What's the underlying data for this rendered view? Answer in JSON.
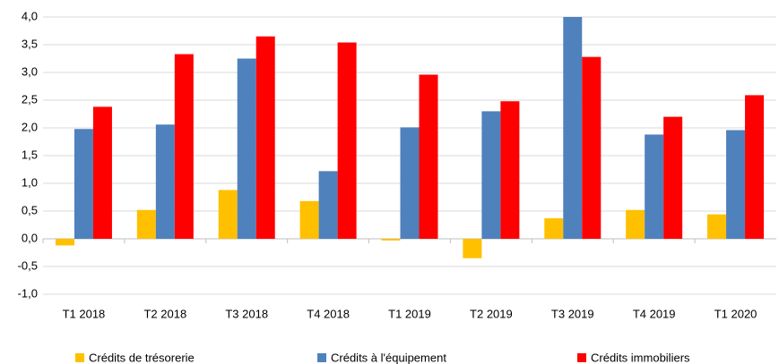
{
  "chart_data": {
    "type": "bar",
    "categories": [
      "T1 2018",
      "T2 2018",
      "T3 2018",
      "T4 2018",
      "T1 2019",
      "T2 2019",
      "T3 2019",
      "T4 2019",
      "T1 2020"
    ],
    "series": [
      {
        "name": "Crédits de trésorerie",
        "color": "#ffc000",
        "values": [
          -0.12,
          0.52,
          0.88,
          0.68,
          -0.03,
          -0.35,
          0.37,
          0.52,
          0.44
        ]
      },
      {
        "name": "Crédits à l'équipement",
        "color": "#4f81bd",
        "values": [
          1.98,
          2.06,
          3.25,
          1.22,
          2.01,
          2.3,
          4.0,
          1.88,
          1.96
        ]
      },
      {
        "name": "Crédits immobiliers",
        "color": "#ff0000",
        "values": [
          2.38,
          3.33,
          3.65,
          3.54,
          2.96,
          2.48,
          3.28,
          2.2,
          2.59
        ]
      }
    ],
    "ylim": [
      -1,
      4
    ],
    "yticks": [
      {
        "value": -1,
        "label": "-1,0"
      },
      {
        "value": -0.5,
        "label": "-0,5"
      },
      {
        "value": 0,
        "label": "0,0"
      },
      {
        "value": 0.5,
        "label": "0,5"
      },
      {
        "value": 1,
        "label": "1,0"
      },
      {
        "value": 1.5,
        "label": "1,5"
      },
      {
        "value": 2,
        "label": "2,0"
      },
      {
        "value": 2.5,
        "label": "2,5"
      },
      {
        "value": 3,
        "label": "3,0"
      },
      {
        "value": 3.5,
        "label": "3,5"
      },
      {
        "value": 4,
        "label": "4,0"
      }
    ],
    "grid": true,
    "legend": "bottom"
  }
}
